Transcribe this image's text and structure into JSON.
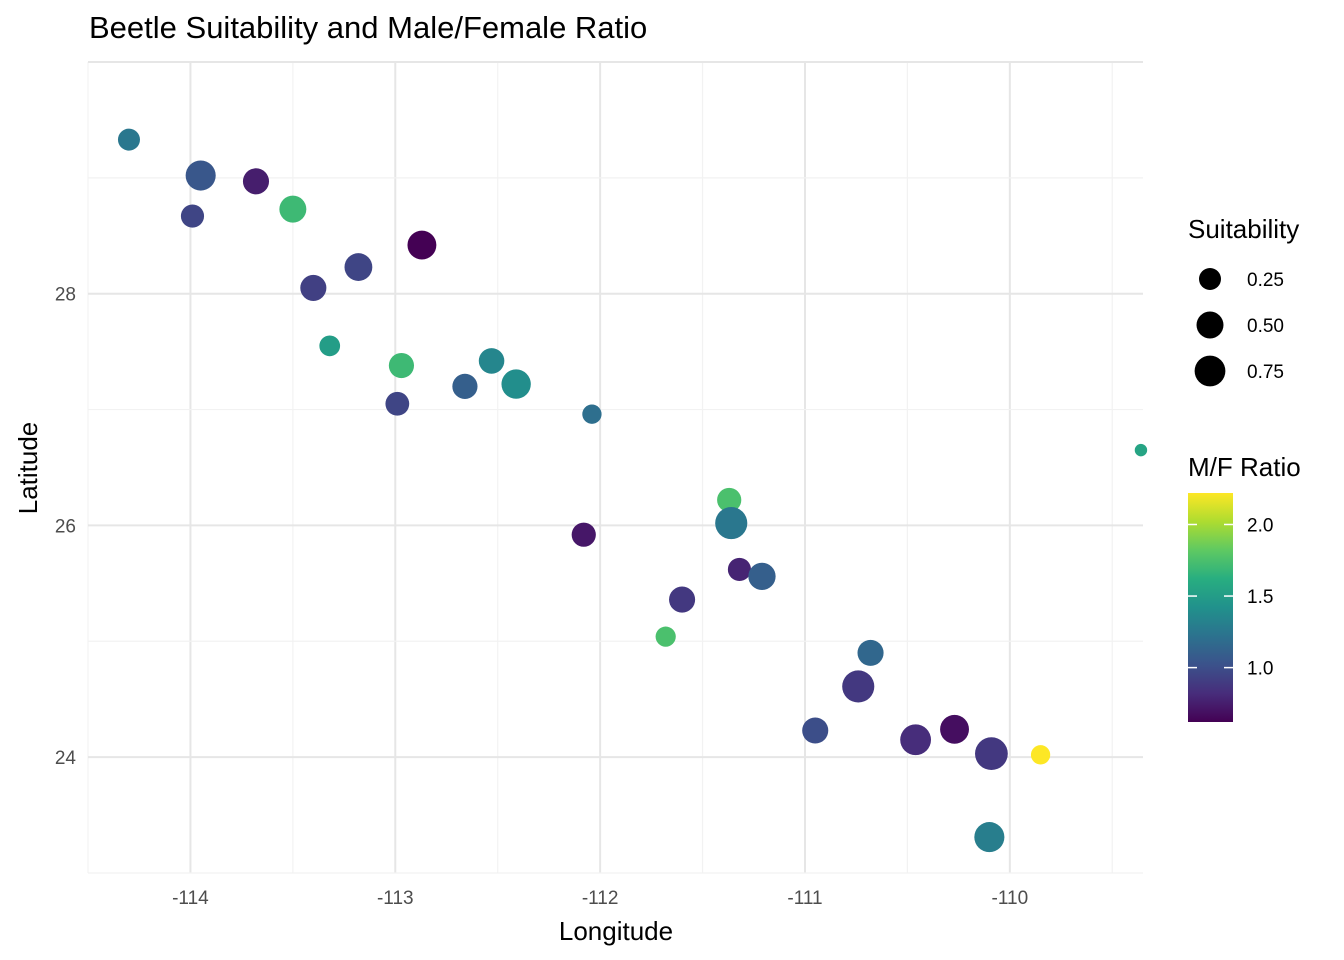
{
  "chart_data": {
    "type": "scatter",
    "title": "Beetle Suitability and Male/Female Ratio",
    "xlabel": "Longitude",
    "ylabel": "Latitude",
    "xlim": [
      -114.5,
      -109.35
    ],
    "ylim": [
      23.0,
      30.0
    ],
    "x_ticks": [
      -114,
      -113,
      -112,
      -111,
      -110
    ],
    "x_tick_labels": [
      "-114",
      "-113",
      "-112",
      "-111",
      "-110"
    ],
    "y_ticks": [
      24,
      26,
      28
    ],
    "y_tick_labels": [
      "24",
      "26",
      "28"
    ],
    "grid": true,
    "size_legend": {
      "title": "Suitability",
      "entries": [
        {
          "label": "0.25",
          "value": 0.25
        },
        {
          "label": "0.50",
          "value": 0.5
        },
        {
          "label": "0.75",
          "value": 0.75
        }
      ]
    },
    "color_legend": {
      "title": "M/F Ratio",
      "range": [
        0.62,
        2.22
      ],
      "ticks": [
        1.0,
        1.5,
        2.0
      ],
      "tick_labels": [
        "1.0",
        "1.5",
        "2.0"
      ],
      "colormap": "viridis"
    },
    "points": [
      {
        "lon": -114.3,
        "lat": 29.33,
        "suitability": 0.25,
        "ratio": 1.25
      },
      {
        "lon": -113.95,
        "lat": 29.02,
        "suitability": 0.7,
        "ratio": 1.05
      },
      {
        "lon": -113.68,
        "lat": 28.97,
        "suitability": 0.45,
        "ratio": 0.75
      },
      {
        "lon": -113.99,
        "lat": 28.67,
        "suitability": 0.3,
        "ratio": 0.95
      },
      {
        "lon": -113.5,
        "lat": 28.73,
        "suitability": 0.5,
        "ratio": 1.7
      },
      {
        "lon": -112.87,
        "lat": 28.42,
        "suitability": 0.62,
        "ratio": 0.62
      },
      {
        "lon": -113.18,
        "lat": 28.23,
        "suitability": 0.55,
        "ratio": 0.95
      },
      {
        "lon": -113.4,
        "lat": 28.05,
        "suitability": 0.45,
        "ratio": 0.92
      },
      {
        "lon": -113.32,
        "lat": 27.55,
        "suitability": 0.2,
        "ratio": 1.5
      },
      {
        "lon": -112.97,
        "lat": 27.38,
        "suitability": 0.4,
        "ratio": 1.7
      },
      {
        "lon": -112.53,
        "lat": 27.42,
        "suitability": 0.42,
        "ratio": 1.35
      },
      {
        "lon": -112.41,
        "lat": 27.22,
        "suitability": 0.65,
        "ratio": 1.4
      },
      {
        "lon": -112.66,
        "lat": 27.2,
        "suitability": 0.4,
        "ratio": 1.1
      },
      {
        "lon": -112.99,
        "lat": 27.05,
        "suitability": 0.33,
        "ratio": 0.95
      },
      {
        "lon": -112.04,
        "lat": 26.96,
        "suitability": 0.15,
        "ratio": 1.2
      },
      {
        "lon": -109.36,
        "lat": 26.65,
        "suitability": 0.01,
        "ratio": 1.55
      },
      {
        "lon": -111.37,
        "lat": 26.22,
        "suitability": 0.35,
        "ratio": 1.75
      },
      {
        "lon": -111.36,
        "lat": 26.02,
        "suitability": 0.85,
        "ratio": 1.25
      },
      {
        "lon": -112.08,
        "lat": 25.92,
        "suitability": 0.35,
        "ratio": 0.72
      },
      {
        "lon": -111.32,
        "lat": 25.62,
        "suitability": 0.3,
        "ratio": 0.78
      },
      {
        "lon": -111.21,
        "lat": 25.56,
        "suitability": 0.52,
        "ratio": 1.1
      },
      {
        "lon": -111.6,
        "lat": 25.36,
        "suitability": 0.45,
        "ratio": 0.88
      },
      {
        "lon": -111.68,
        "lat": 25.04,
        "suitability": 0.18,
        "ratio": 1.75
      },
      {
        "lon": -110.68,
        "lat": 24.9,
        "suitability": 0.45,
        "ratio": 1.15
      },
      {
        "lon": -110.74,
        "lat": 24.61,
        "suitability": 0.85,
        "ratio": 0.88
      },
      {
        "lon": -110.95,
        "lat": 24.23,
        "suitability": 0.45,
        "ratio": 1.0
      },
      {
        "lon": -110.27,
        "lat": 24.24,
        "suitability": 0.62,
        "ratio": 0.68
      },
      {
        "lon": -110.46,
        "lat": 24.15,
        "suitability": 0.75,
        "ratio": 0.82
      },
      {
        "lon": -110.09,
        "lat": 24.03,
        "suitability": 0.9,
        "ratio": 0.88
      },
      {
        "lon": -109.85,
        "lat": 24.02,
        "suitability": 0.15,
        "ratio": 2.22
      },
      {
        "lon": -110.1,
        "lat": 23.31,
        "suitability": 0.7,
        "ratio": 1.3
      }
    ]
  }
}
